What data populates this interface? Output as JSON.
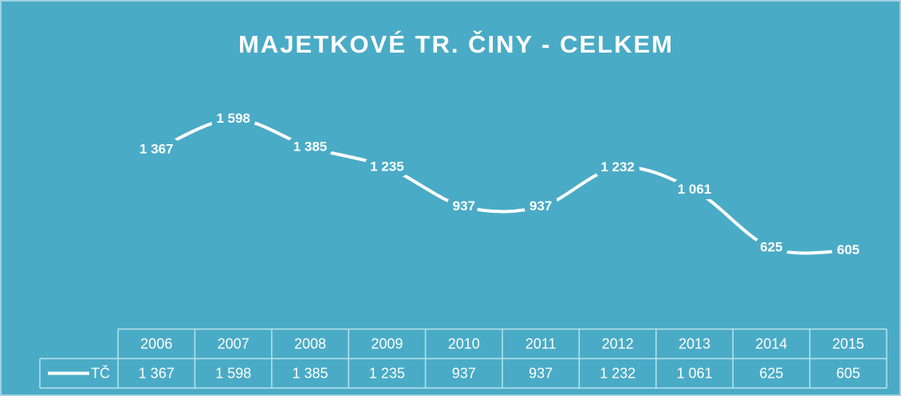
{
  "chart_data": {
    "type": "line",
    "title": "MAJETKOVÉ TR. ČINY - CELKEM",
    "categories": [
      "2006",
      "2007",
      "2008",
      "2009",
      "2010",
      "2011",
      "2012",
      "2013",
      "2014",
      "2015"
    ],
    "series": [
      {
        "name": "TČ",
        "color": "#ffffff",
        "values": [
          1367,
          1598,
          1385,
          1235,
          937,
          937,
          1232,
          1061,
          625,
          605
        ],
        "value_labels": [
          "1 367",
          "1 598",
          "1 385",
          "1 235",
          "937",
          "937",
          "1 232",
          "1 061",
          "625",
          "605"
        ]
      }
    ],
    "ylim": [
      0,
      1800
    ],
    "smooth": true,
    "data_table": true,
    "background": "#4aabc6"
  }
}
